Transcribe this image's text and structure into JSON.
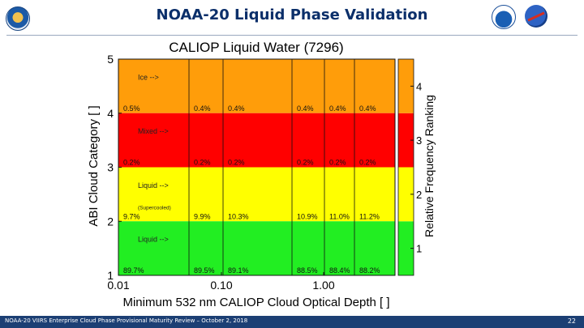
{
  "slide": {
    "title": "NOAA-20 Liquid Phase Validation",
    "footer": "NOAA-20 VIIRS Enterprise Cloud Phase Provisional Maturity Review – October 2, 2018",
    "page_number": "22"
  },
  "chart_data": {
    "type": "heatmap",
    "title": "CALIOP Liquid Water (7296)",
    "xlabel": "Minimum 532 nm CALIOP Cloud Optical Depth [ ]",
    "ylabel": "ABI Cloud Category [ ]",
    "colorbar_label": "Relative Frequency Ranking",
    "x_ticks": [
      "0.01",
      "0.10",
      "1.00"
    ],
    "y_ticks": [
      "1",
      "2",
      "3",
      "4",
      "5"
    ],
    "colorbar_ticks": [
      "1",
      "2",
      "3",
      "4"
    ],
    "columns": 6,
    "rows": [
      {
        "category": "Ice -->",
        "rank": 4,
        "color": "#ff9d0a",
        "values": [
          "0.5%",
          "0.4%",
          "0.4%",
          "0.4%",
          "0.4%",
          "0.4%"
        ]
      },
      {
        "category": "Mixed -->",
        "rank": 3,
        "color": "#ff0000",
        "values": [
          "0.2%",
          "0.2%",
          "0.2%",
          "0.2%",
          "0.2%",
          "0.2%"
        ]
      },
      {
        "category": "Liquid -->",
        "sublabel": "(Supercooled)",
        "rank": 2,
        "color": "#ffff00",
        "values": [
          "9.7%",
          "9.9%",
          "10.3%",
          "10.9%",
          "11.0%",
          "11.2%"
        ]
      },
      {
        "category": "Liquid -->",
        "rank": 1,
        "color": "#22ee22",
        "values": [
          "89.7%",
          "89.5%",
          "89.1%",
          "88.5%",
          "88.4%",
          "88.2%"
        ]
      }
    ],
    "colorbar_colors": [
      "#22ee22",
      "#ffff00",
      "#ff0000",
      "#ff9d0a"
    ]
  }
}
